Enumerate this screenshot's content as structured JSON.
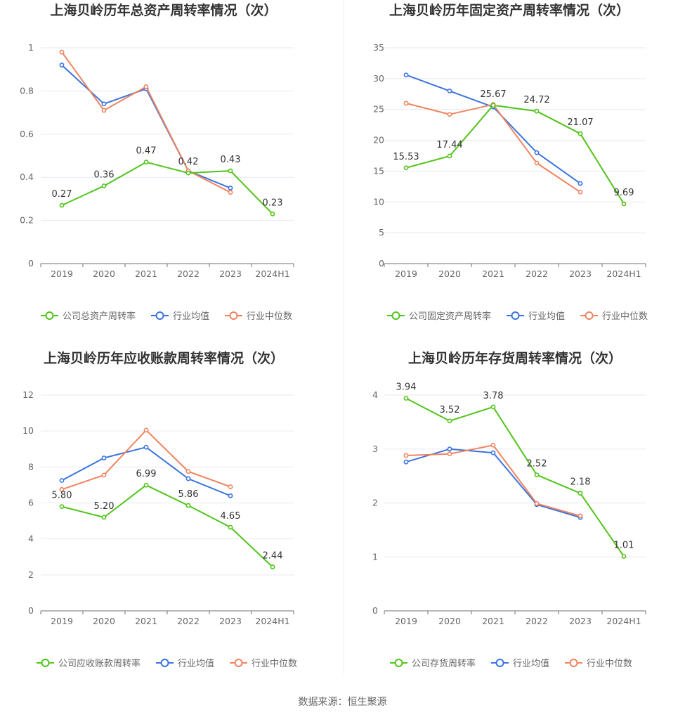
{
  "source_text": "数据来源：恒生聚源",
  "colors": {
    "company": "#52c41a",
    "avg": "#3b74e0",
    "median": "#f0845f"
  },
  "chart_data": [
    {
      "type": "line",
      "title": "上海贝岭历年总资产周转率情况（次）",
      "categories": [
        "2019",
        "2020",
        "2021",
        "2022",
        "2023",
        "2024H1"
      ],
      "ylim": [
        0,
        1
      ],
      "yticks": [
        0,
        0.2,
        0.4,
        0.6,
        0.8,
        1
      ],
      "ytick_labels": [
        "0",
        "0.2",
        "0.4",
        "0.6",
        "0.8",
        "1"
      ],
      "series": [
        {
          "name": "公司总资产周转率",
          "values": [
            0.27,
            0.36,
            0.47,
            0.42,
            0.43,
            0.23
          ],
          "labels": [
            "0.27",
            "0.36",
            "0.47",
            "0.42",
            "0.43",
            "0.23"
          ]
        },
        {
          "name": "行业均值",
          "values": [
            0.92,
            0.74,
            0.81,
            0.43,
            0.35,
            null
          ]
        },
        {
          "name": "行业中位数",
          "values": [
            0.98,
            0.71,
            0.82,
            0.43,
            0.33,
            null
          ]
        }
      ]
    },
    {
      "type": "line",
      "title": "上海贝岭历年固定资产周转率情况（次）",
      "categories": [
        "2019",
        "2020",
        "2021",
        "2022",
        "2023",
        "2024H1"
      ],
      "ylim": [
        0,
        35
      ],
      "yticks": [
        0,
        5,
        10,
        15,
        20,
        25,
        30,
        35
      ],
      "ytick_labels": [
        "0",
        "5",
        "10",
        "15",
        "20",
        "25",
        "30",
        "35"
      ],
      "series": [
        {
          "name": "公司固定资产周转率",
          "values": [
            15.53,
            17.44,
            25.67,
            24.72,
            21.07,
            9.69
          ],
          "labels": [
            "15.53",
            "17.44",
            "25.67",
            "24.72",
            "21.07",
            "9.69"
          ]
        },
        {
          "name": "行业均值",
          "values": [
            30.6,
            28.0,
            25.4,
            18.0,
            13.0,
            null
          ]
        },
        {
          "name": "行业中位数",
          "values": [
            26.0,
            24.2,
            25.8,
            16.3,
            11.6,
            null
          ]
        }
      ]
    },
    {
      "type": "line",
      "title": "上海贝岭历年应收账款周转率情况（次）",
      "categories": [
        "2019",
        "2020",
        "2021",
        "2022",
        "2023",
        "2024H1"
      ],
      "ylim": [
        0,
        12
      ],
      "yticks": [
        0,
        2,
        4,
        6,
        8,
        10,
        12
      ],
      "ytick_labels": [
        "0",
        "2",
        "4",
        "6",
        "8",
        "10",
        "12"
      ],
      "series": [
        {
          "name": "公司应收账款周转率",
          "values": [
            5.8,
            5.2,
            6.99,
            5.86,
            4.65,
            2.44
          ],
          "labels": [
            "5.80",
            "5.20",
            "6.99",
            "5.86",
            "4.65",
            "2.44"
          ]
        },
        {
          "name": "行业均值",
          "values": [
            7.25,
            8.5,
            9.1,
            7.35,
            6.4,
            null
          ]
        },
        {
          "name": "行业中位数",
          "values": [
            6.75,
            7.55,
            10.05,
            7.75,
            6.9,
            null
          ]
        }
      ]
    },
    {
      "type": "line",
      "title": "上海贝岭历年存货周转率情况（次）",
      "categories": [
        "2019",
        "2020",
        "2021",
        "2022",
        "2023",
        "2024H1"
      ],
      "ylim": [
        0,
        4
      ],
      "yticks": [
        0,
        1,
        2,
        3,
        4
      ],
      "ytick_labels": [
        "0",
        "1",
        "2",
        "3",
        "4"
      ],
      "series": [
        {
          "name": "公司存货周转率",
          "values": [
            3.94,
            3.52,
            3.78,
            2.52,
            2.18,
            1.01
          ],
          "labels": [
            "3.94",
            "3.52",
            "3.78",
            "2.52",
            "2.18",
            "1.01"
          ]
        },
        {
          "name": "行业均值",
          "values": [
            2.76,
            3.0,
            2.93,
            1.97,
            1.73,
            null
          ]
        },
        {
          "name": "行业中位数",
          "values": [
            2.88,
            2.91,
            3.07,
            1.99,
            1.76,
            null
          ]
        }
      ]
    }
  ]
}
